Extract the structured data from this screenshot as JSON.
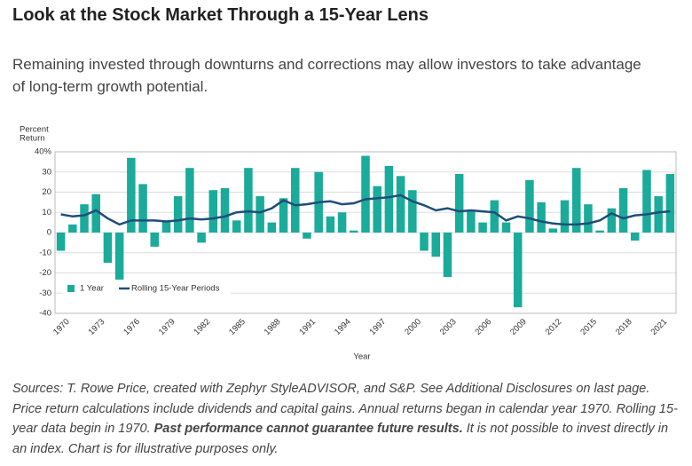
{
  "chart_data": {
    "type": "bar",
    "title": "Look at the Stock Market Through a 15-Year Lens",
    "subtitle": "Remaining invested through downturns and corrections may allow investors to take advantage of long-term growth potential.",
    "y_label": [
      "Percent",
      "Return"
    ],
    "x_label": "Year",
    "categories": [
      null,
      "1970",
      null,
      null,
      "1973",
      null,
      null,
      "1976",
      null,
      null,
      "1979",
      null,
      null,
      "1982",
      null,
      null,
      "1985",
      null,
      null,
      "1988",
      null,
      null,
      "1991",
      null,
      null,
      "1994",
      null,
      null,
      "1997",
      null,
      null,
      "2000",
      null,
      null,
      "2003",
      null,
      null,
      "2006",
      null,
      null,
      "2009",
      null,
      null,
      "2012",
      null,
      null,
      "2015",
      null,
      null,
      "2018",
      null,
      null,
      "2021"
    ],
    "series": [
      {
        "name": "1 Year",
        "type": "bar",
        "color": "#1aab9b",
        "values": [
          -9,
          4,
          14,
          19,
          -15,
          -26,
          37,
          24,
          -7,
          6,
          18,
          32,
          -5,
          21,
          22,
          6,
          32,
          18,
          5,
          17,
          32,
          -3,
          30,
          8,
          10,
          1,
          38,
          23,
          33,
          28,
          21,
          -9,
          -12,
          -22,
          29,
          11,
          5,
          16,
          5,
          -37,
          26,
          15,
          2,
          16,
          32,
          14,
          1,
          12,
          22,
          -4,
          31,
          18,
          29
        ]
      },
      {
        "name": "Rolling 15-Year Periods",
        "type": "line",
        "color": "#1f4e79",
        "values": [
          9,
          8,
          8.5,
          11,
          7,
          4,
          6,
          6,
          6,
          5.5,
          6,
          7,
          6.5,
          7,
          8,
          10,
          10.5,
          10,
          12,
          16,
          13.5,
          14,
          15,
          15.5,
          14,
          14.5,
          16.5,
          17,
          17.5,
          18.5,
          15.5,
          13.5,
          11,
          12,
          10.5,
          11,
          10.5,
          10,
          6,
          8,
          7,
          5.5,
          4.5,
          4,
          4,
          4.5,
          6,
          9.5,
          7,
          8.5,
          9,
          10,
          10.5
        ]
      }
    ],
    "ylim": [
      -40,
      40
    ],
    "yticks": [
      -40,
      -30,
      -20,
      -10,
      0,
      10,
      20,
      30,
      {
        "value": 40,
        "label": "40%"
      }
    ],
    "grid": true,
    "legend": "lower left",
    "footnote": [
      "Sources: T. Rowe Price, created with Zephyr StyleADVISOR, and S&P. See Additional Disclosures on last page. Price return calculations include dividends and capital gains. Annual returns began in calendar year 1970. Rolling 15-year data begin in 1970. ",
      "Past performance cannot guarantee future results.",
      " It is not possible to invest directly in an index. Chart is for illustrative purposes only."
    ]
  }
}
